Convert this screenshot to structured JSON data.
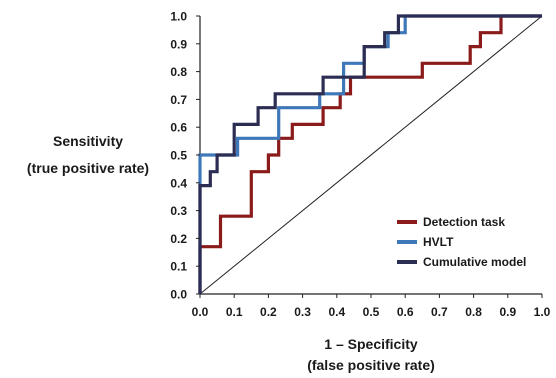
{
  "chart_data": {
    "type": "line",
    "subtype": "roc-step",
    "ylabel_lines": [
      "Sensitivity",
      "(true positive rate)"
    ],
    "xlabel_lines": [
      "1 – Specificity",
      "(false positive rate)"
    ],
    "xlim": [
      0.0,
      1.0
    ],
    "ylim": [
      0.0,
      1.0
    ],
    "x_ticks": [
      "0.0",
      "0.1",
      "0.2",
      "0.3",
      "0.4",
      "0.5",
      "0.6",
      "0.7",
      "0.8",
      "0.9",
      "1.0"
    ],
    "y_ticks": [
      "0.0",
      "0.1",
      "0.2",
      "0.3",
      "0.4",
      "0.5",
      "0.6",
      "0.7",
      "0.8",
      "0.9",
      "1.0"
    ],
    "grid": false,
    "legend_position": "bottom-right",
    "reference_line": {
      "x": [
        0,
        1
      ],
      "y": [
        0,
        1
      ],
      "color": "#222222"
    },
    "series": [
      {
        "name": "Detection task",
        "color": "#8b1a1a",
        "points": [
          [
            0,
            0
          ],
          [
            0,
            0.17
          ],
          [
            0.06,
            0.17
          ],
          [
            0.06,
            0.28
          ],
          [
            0.15,
            0.28
          ],
          [
            0.15,
            0.44
          ],
          [
            0.2,
            0.44
          ],
          [
            0.2,
            0.5
          ],
          [
            0.23,
            0.5
          ],
          [
            0.23,
            0.56
          ],
          [
            0.27,
            0.56
          ],
          [
            0.27,
            0.61
          ],
          [
            0.36,
            0.61
          ],
          [
            0.36,
            0.67
          ],
          [
            0.41,
            0.67
          ],
          [
            0.41,
            0.72
          ],
          [
            0.44,
            0.72
          ],
          [
            0.44,
            0.78
          ],
          [
            0.65,
            0.78
          ],
          [
            0.65,
            0.83
          ],
          [
            0.79,
            0.83
          ],
          [
            0.79,
            0.89
          ],
          [
            0.82,
            0.89
          ],
          [
            0.82,
            0.94
          ],
          [
            0.88,
            0.94
          ],
          [
            0.88,
            1.0
          ],
          [
            1.0,
            1.0
          ]
        ]
      },
      {
        "name": "HVLT",
        "color": "#3e78b8",
        "points": [
          [
            0,
            0
          ],
          [
            0,
            0.5
          ],
          [
            0.11,
            0.5
          ],
          [
            0.11,
            0.56
          ],
          [
            0.23,
            0.56
          ],
          [
            0.23,
            0.67
          ],
          [
            0.35,
            0.67
          ],
          [
            0.35,
            0.72
          ],
          [
            0.42,
            0.72
          ],
          [
            0.42,
            0.83
          ],
          [
            0.48,
            0.83
          ],
          [
            0.48,
            0.89
          ],
          [
            0.55,
            0.89
          ],
          [
            0.55,
            0.94
          ],
          [
            0.6,
            0.94
          ],
          [
            0.6,
            1.0
          ],
          [
            1.0,
            1.0
          ]
        ]
      },
      {
        "name": "Cumulative model",
        "color": "#2c2d52",
        "points": [
          [
            0,
            0
          ],
          [
            0,
            0.39
          ],
          [
            0.03,
            0.39
          ],
          [
            0.03,
            0.44
          ],
          [
            0.05,
            0.44
          ],
          [
            0.05,
            0.5
          ],
          [
            0.1,
            0.5
          ],
          [
            0.1,
            0.61
          ],
          [
            0.17,
            0.61
          ],
          [
            0.17,
            0.67
          ],
          [
            0.22,
            0.67
          ],
          [
            0.22,
            0.72
          ],
          [
            0.36,
            0.72
          ],
          [
            0.36,
            0.78
          ],
          [
            0.48,
            0.78
          ],
          [
            0.48,
            0.89
          ],
          [
            0.54,
            0.89
          ],
          [
            0.54,
            0.94
          ],
          [
            0.58,
            0.94
          ],
          [
            0.58,
            1.0
          ],
          [
            1.0,
            1.0
          ]
        ]
      }
    ]
  }
}
